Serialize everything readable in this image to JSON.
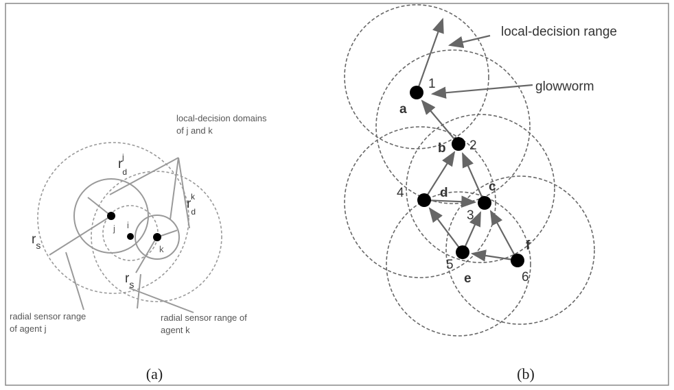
{
  "panel_a": {
    "annotations": {
      "domains": [
        "local-decision domains",
        "of j and k"
      ],
      "rdj": {
        "base": "r",
        "sub": "d",
        "sup": "j"
      },
      "rdk": {
        "base": "r",
        "sub": "d",
        "sup": "k"
      },
      "rs_left": {
        "base": "r",
        "sub": "s"
      },
      "rs_bottom": {
        "base": "r",
        "sub": "s"
      },
      "sensor_j": [
        "radial sensor range",
        "of agent j"
      ],
      "sensor_k": [
        "radial sensor range of",
        "agent k"
      ]
    },
    "agents": [
      "j",
      "i",
      "k"
    ],
    "caption": "(a)"
  },
  "panel_b": {
    "annotations": {
      "range": "local-decision range",
      "glowworm": "glowworm"
    },
    "nodes": [
      {
        "number": "1",
        "letter": "a"
      },
      {
        "number": "2",
        "letter": "b"
      },
      {
        "number": "3",
        "letter": "c"
      },
      {
        "number": "4",
        "letter": "d"
      },
      {
        "number": "5",
        "letter": "e"
      },
      {
        "number": "6",
        "letter": "f"
      }
    ],
    "caption": "(b)"
  }
}
